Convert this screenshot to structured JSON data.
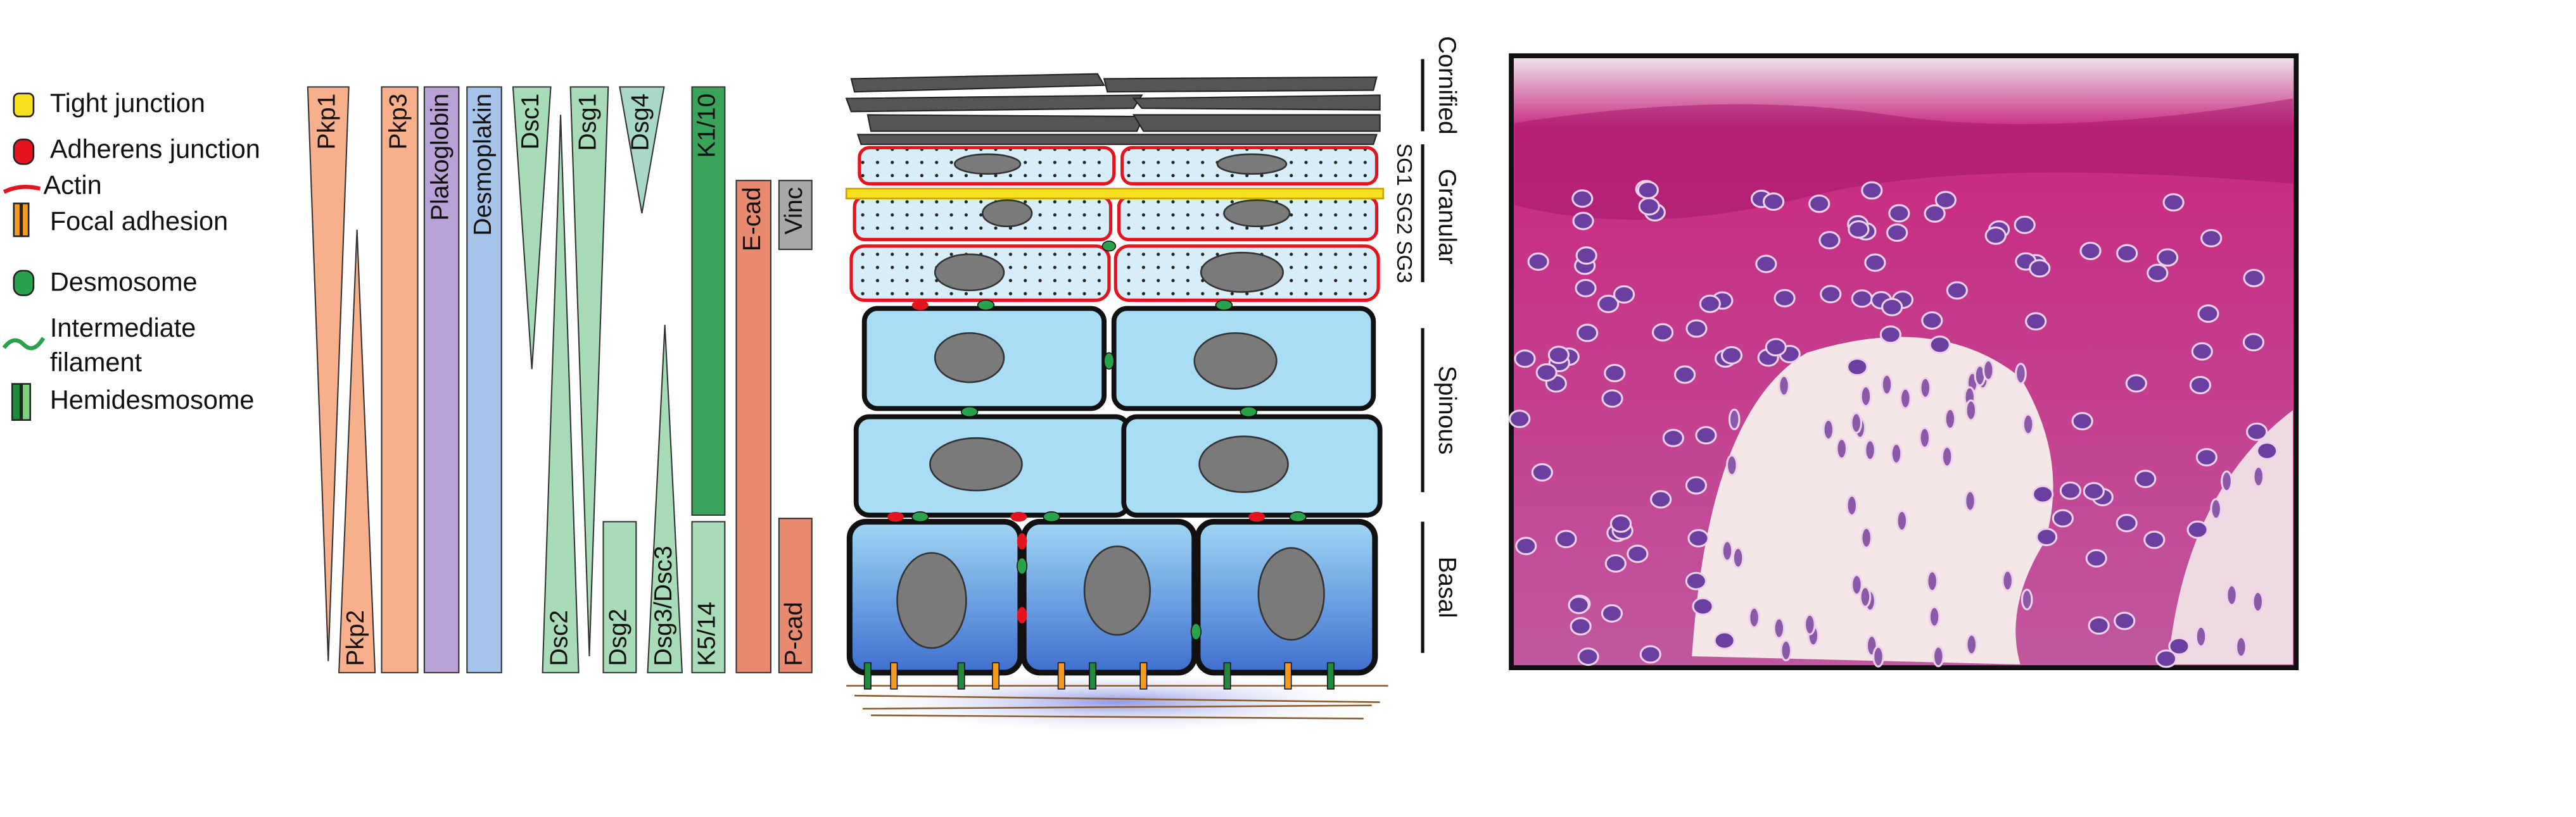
{
  "legend": {
    "items": [
      [
        "Tight junction"
      ],
      [
        "Adherens junction"
      ],
      [
        "Actin"
      ],
      [
        "Focal adhesion"
      ],
      [
        "Desmosome"
      ],
      [
        "Intermediate",
        "filament"
      ],
      [
        "Hemidesmosome"
      ]
    ]
  },
  "proteins": [
    "Pkp1",
    "Pkp2",
    "Pkp3",
    "Plakoglobin",
    "Desmoplakin",
    "Dsc1",
    "Dsc2",
    "Dsg1",
    "Dsg2",
    "Dsg4",
    "Dsg3/Dsc3",
    "K1/10",
    "K5/14",
    "E-cad",
    "P-cad",
    "Vinc"
  ],
  "layers": [
    "Cornified",
    "Granular",
    "Spinous",
    "Basal"
  ],
  "sublayers": "SG1 SG2 SG3"
}
